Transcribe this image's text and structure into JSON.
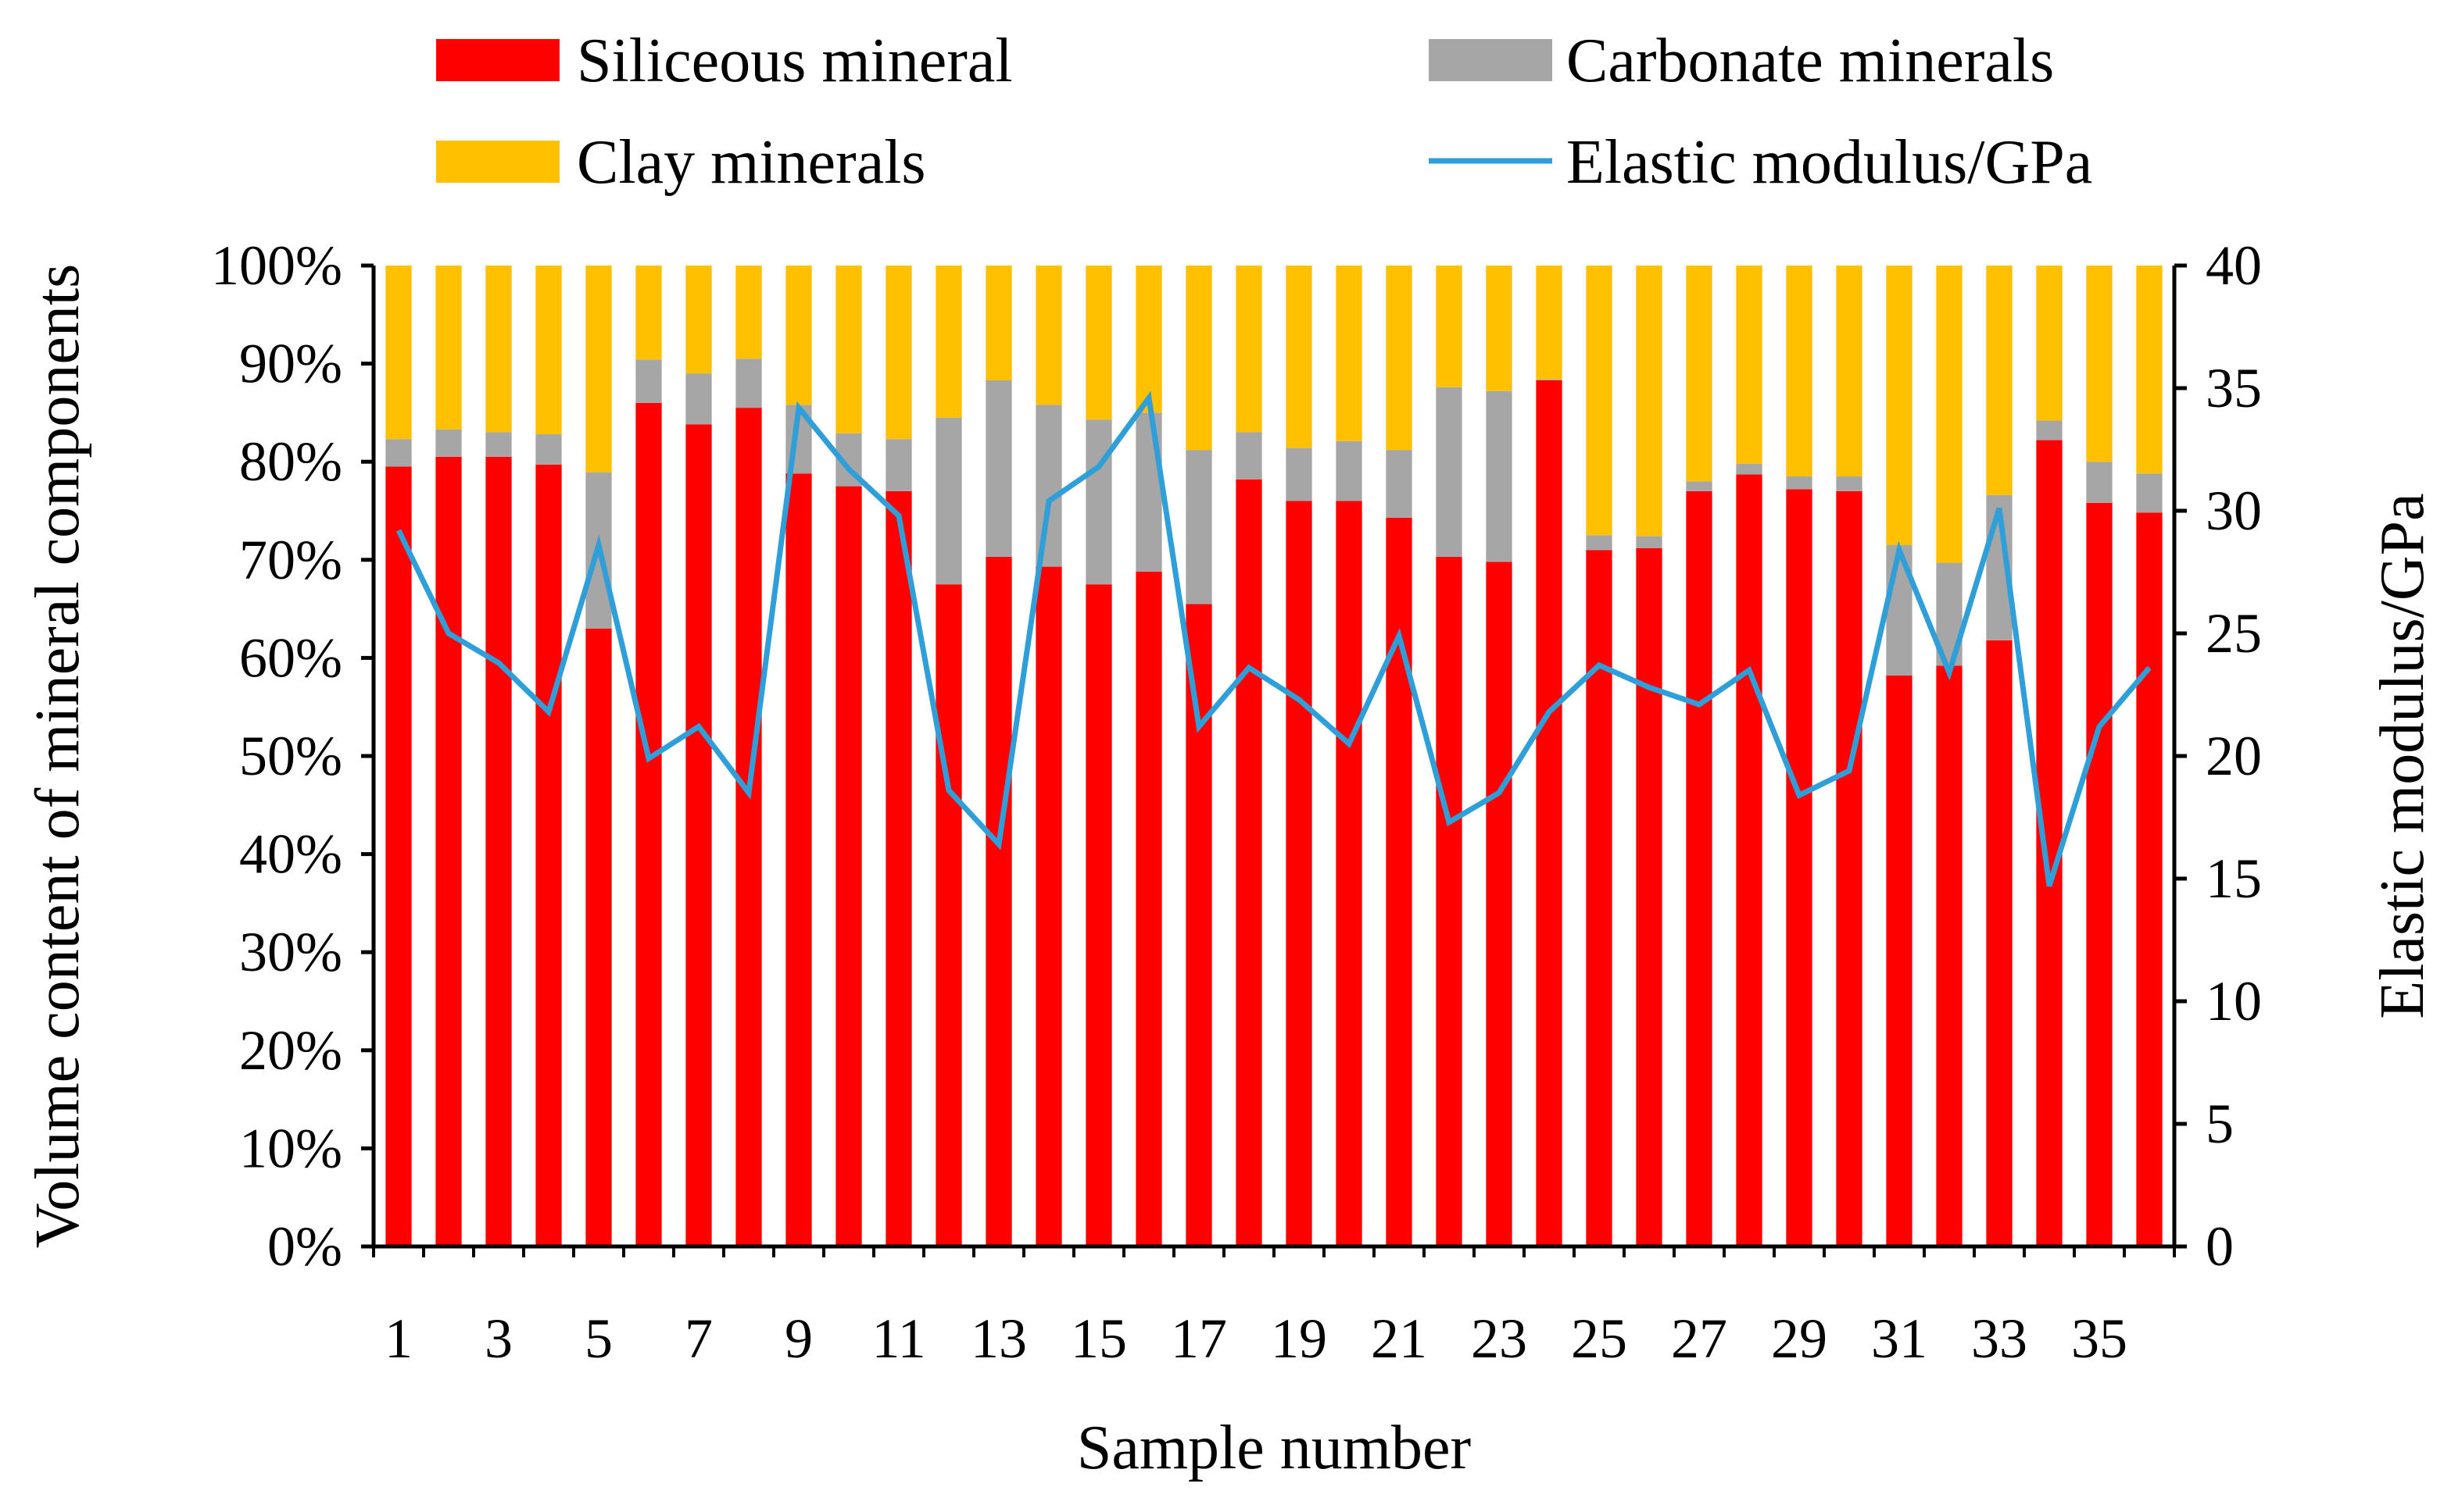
{
  "chart_data": {
    "type": "bar",
    "stacked": true,
    "percent_stacked": true,
    "xlabel": "Sample number",
    "ylabel": "Volume content of mineral components",
    "y2label": "Elastic modulus/GPa",
    "ylim": [
      0,
      100
    ],
    "y2lim": [
      0,
      40
    ],
    "yticks": [
      "0%",
      "10%",
      "20%",
      "30%",
      "40%",
      "50%",
      "60%",
      "70%",
      "80%",
      "90%",
      "100%"
    ],
    "y2ticks": [
      "0",
      "5",
      "10",
      "15",
      "20",
      "25",
      "30",
      "35",
      "40"
    ],
    "xticks": [
      "1",
      "3",
      "5",
      "7",
      "9",
      "11",
      "13",
      "15",
      "17",
      "19",
      "21",
      "23",
      "25",
      "27",
      "29",
      "31",
      "33",
      "35"
    ],
    "categories": [
      1,
      2,
      3,
      4,
      5,
      6,
      7,
      8,
      9,
      10,
      11,
      12,
      13,
      14,
      15,
      16,
      17,
      18,
      19,
      20,
      21,
      22,
      23,
      24,
      25,
      26,
      27,
      28,
      29,
      30,
      31,
      32,
      33,
      34,
      35,
      36
    ],
    "series": [
      {
        "name": "Siliceous mineral",
        "color": "#ff0000",
        "kind": "bar",
        "values": [
          79.5,
          80.5,
          80.5,
          79.7,
          63,
          86,
          83.8,
          85.5,
          78.8,
          77.5,
          77,
          67.5,
          70.3,
          69.3,
          67.5,
          68.8,
          65.5,
          78.2,
          76,
          76,
          74.3,
          70.3,
          69.8,
          88.3,
          71,
          71.2,
          77,
          78.7,
          77.2,
          77,
          58.2,
          59.2,
          61.8,
          82.2,
          75.8,
          74.8
        ]
      },
      {
        "name": "Carbonate minerals",
        "color": "#a6a6a6",
        "kind": "bar",
        "values": [
          2.8,
          2.8,
          2.5,
          3.1,
          15.9,
          4.4,
          5.2,
          5.0,
          7.0,
          5.4,
          5.3,
          17.0,
          18.0,
          16.5,
          16.8,
          16.2,
          15.7,
          4.8,
          5.4,
          6.1,
          6.9,
          17.3,
          17.4,
          0.1,
          1.5,
          1.2,
          1.0,
          1.1,
          1.3,
          1.5,
          13.3,
          10.5,
          14.8,
          2.0,
          4.2,
          4.0
        ]
      },
      {
        "name": "Clay minerals",
        "color": "#ffc000",
        "kind": "bar",
        "values": [
          17.7,
          16.7,
          17,
          17.2,
          21.1,
          9.6,
          11,
          9.5,
          14.2,
          17.1,
          17.7,
          15.5,
          11.7,
          14.2,
          15.7,
          15,
          18.8,
          17,
          18.6,
          17.9,
          18.8,
          12.4,
          12.8,
          11.6,
          27.5,
          27.6,
          22,
          20.2,
          21.5,
          21.5,
          28.5,
          30.3,
          23.4,
          15.8,
          20,
          21.2
        ]
      },
      {
        "name": "Elastic modulus/GPa",
        "color": "#2e9fd9",
        "kind": "line",
        "axis": "right",
        "values": [
          29.2,
          25,
          23.8,
          21.8,
          28.6,
          19.9,
          21.2,
          18.5,
          34.2,
          31.7,
          29.8,
          18.6,
          16.4,
          30.4,
          31.8,
          34.6,
          21.2,
          23.6,
          22.3,
          20.5,
          24.9,
          17.3,
          18.5,
          21.8,
          23.7,
          22.8,
          22.1,
          23.5,
          18.4,
          19.4,
          28.4,
          23.4,
          30.1,
          14.7,
          21.2,
          23.6
        ]
      }
    ],
    "legend": [
      "Siliceous mineral",
      "Carbonate minerals",
      "Clay minerals",
      "Elastic modulus/GPa"
    ],
    "legend_position": "top",
    "grid": false
  }
}
